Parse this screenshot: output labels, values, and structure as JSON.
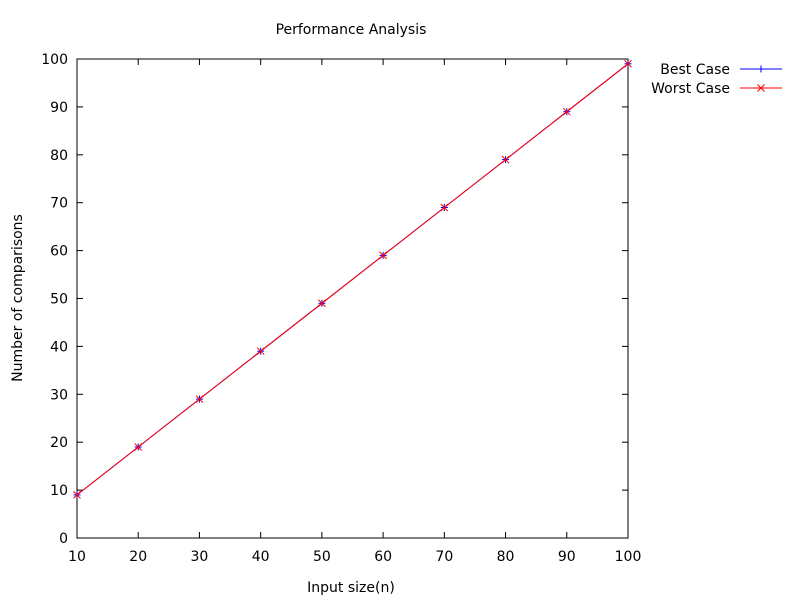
{
  "chart_data": {
    "type": "line",
    "title": "Performance Analysis",
    "xlabel": "Input size(n)",
    "ylabel": "Number of comparisons",
    "xlim": [
      10,
      100
    ],
    "ylim": [
      0,
      100
    ],
    "xticks": [
      10,
      20,
      30,
      40,
      50,
      60,
      70,
      80,
      90,
      100
    ],
    "yticks": [
      0,
      10,
      20,
      30,
      40,
      50,
      60,
      70,
      80,
      90,
      100
    ],
    "grid": false,
    "legend_position": "outside top-right",
    "x": [
      10,
      20,
      30,
      40,
      50,
      60,
      70,
      80,
      90,
      100
    ],
    "series": [
      {
        "name": "Best Case",
        "color": "#0000ff",
        "marker": "plus",
        "values": [
          9,
          19,
          29,
          39,
          49,
          59,
          69,
          79,
          89,
          99
        ]
      },
      {
        "name": "Worst Case",
        "color": "#ff0000",
        "marker": "cross",
        "values": [
          9,
          19,
          29,
          39,
          49,
          59,
          69,
          79,
          89,
          99
        ]
      }
    ]
  }
}
